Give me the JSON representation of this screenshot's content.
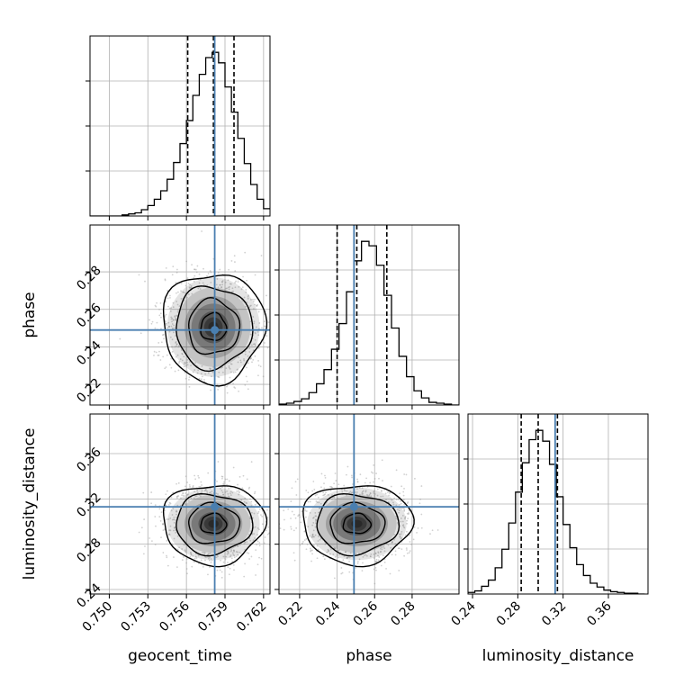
{
  "colors": {
    "truth": "#4a7fb0",
    "hist": "#000000",
    "grid": "#b0b0b0",
    "scatter": "#9a9a9a",
    "density_dark": "#222222"
  },
  "chart_data": {
    "type": "corner",
    "parameters": [
      "geocent_time",
      "phase",
      "luminosity_distance"
    ],
    "axis_labels": {
      "x": [
        "geocent_time",
        "phase",
        "luminosity_distance"
      ],
      "y": [
        "phase",
        "luminosity_distance"
      ]
    },
    "ranges": {
      "geocent_time": [
        0.7485,
        0.7625
      ],
      "phase": [
        0.209,
        0.305
      ],
      "luminosity_distance": [
        0.236,
        0.395
      ]
    },
    "ticks": {
      "geocent_time": [
        "0.750",
        "0.753",
        "0.756",
        "0.759",
        "0.762"
      ],
      "phase": [
        "0.22",
        "0.24",
        "0.26",
        "0.28"
      ],
      "luminosity_distance": [
        "0.24",
        "0.28",
        "0.32",
        "0.36"
      ]
    },
    "tick_values": {
      "geocent_time": [
        0.75,
        0.753,
        0.756,
        0.759,
        0.762
      ],
      "phase": [
        0.22,
        0.24,
        0.26,
        0.28
      ],
      "luminosity_distance": [
        0.24,
        0.28,
        0.32,
        0.36
      ]
    },
    "truths": {
      "geocent_time": 0.7582,
      "phase": 0.249,
      "luminosity_distance": 0.313
    },
    "quantiles": {
      "geocent_time": [
        0.7561,
        0.7581,
        0.7597
      ],
      "phase": [
        0.24,
        0.2505,
        0.2665
      ],
      "luminosity_distance": [
        0.283,
        0.298,
        0.315
      ]
    },
    "histograms": {
      "geocent_time": {
        "edges": [
          0.7485,
          0.749,
          0.7495,
          0.75,
          0.7505,
          0.751,
          0.7515,
          0.752,
          0.7525,
          0.753,
          0.7535,
          0.754,
          0.7545,
          0.755,
          0.7555,
          0.756,
          0.7565,
          0.757,
          0.7575,
          0.758,
          0.7585,
          0.759,
          0.7595,
          0.76,
          0.7605,
          0.761,
          0.7615,
          0.762,
          0.7625
        ],
        "counts": [
          0,
          0,
          0,
          0,
          0,
          1,
          2,
          3,
          6,
          10,
          16,
          24,
          35,
          51,
          69,
          91,
          115,
          135,
          151,
          156,
          146,
          123,
          99,
          74,
          50,
          30,
          16,
          7
        ]
      },
      "phase": {
        "edges": [
          0.209,
          0.213,
          0.217,
          0.221,
          0.225,
          0.229,
          0.233,
          0.237,
          0.241,
          0.245,
          0.249,
          0.253,
          0.257,
          0.261,
          0.265,
          0.269,
          0.273,
          0.277,
          0.281,
          0.285,
          0.289,
          0.293,
          0.297,
          0.301,
          0.305
        ],
        "counts": [
          1,
          2,
          4,
          7,
          14,
          24,
          40,
          63,
          92,
          128,
          163,
          185,
          180,
          158,
          124,
          87,
          55,
          32,
          16,
          8,
          3,
          2,
          1,
          0
        ]
      },
      "luminosity_distance": {
        "edges": [
          0.236,
          0.242,
          0.248,
          0.254,
          0.26,
          0.266,
          0.272,
          0.278,
          0.284,
          0.29,
          0.296,
          0.302,
          0.308,
          0.314,
          0.32,
          0.326,
          0.332,
          0.338,
          0.344,
          0.35,
          0.356,
          0.362,
          0.368,
          0.374,
          0.38,
          0.386,
          0.392
        ],
        "counts": [
          2,
          4,
          10,
          18,
          34,
          58,
          92,
          132,
          170,
          200,
          212,
          198,
          168,
          126,
          90,
          60,
          38,
          24,
          14,
          9,
          5,
          3,
          2,
          1,
          1,
          0
        ]
      }
    },
    "contour_levels_sigma": [
      0.5,
      1.0,
      1.5,
      2.0
    ]
  }
}
